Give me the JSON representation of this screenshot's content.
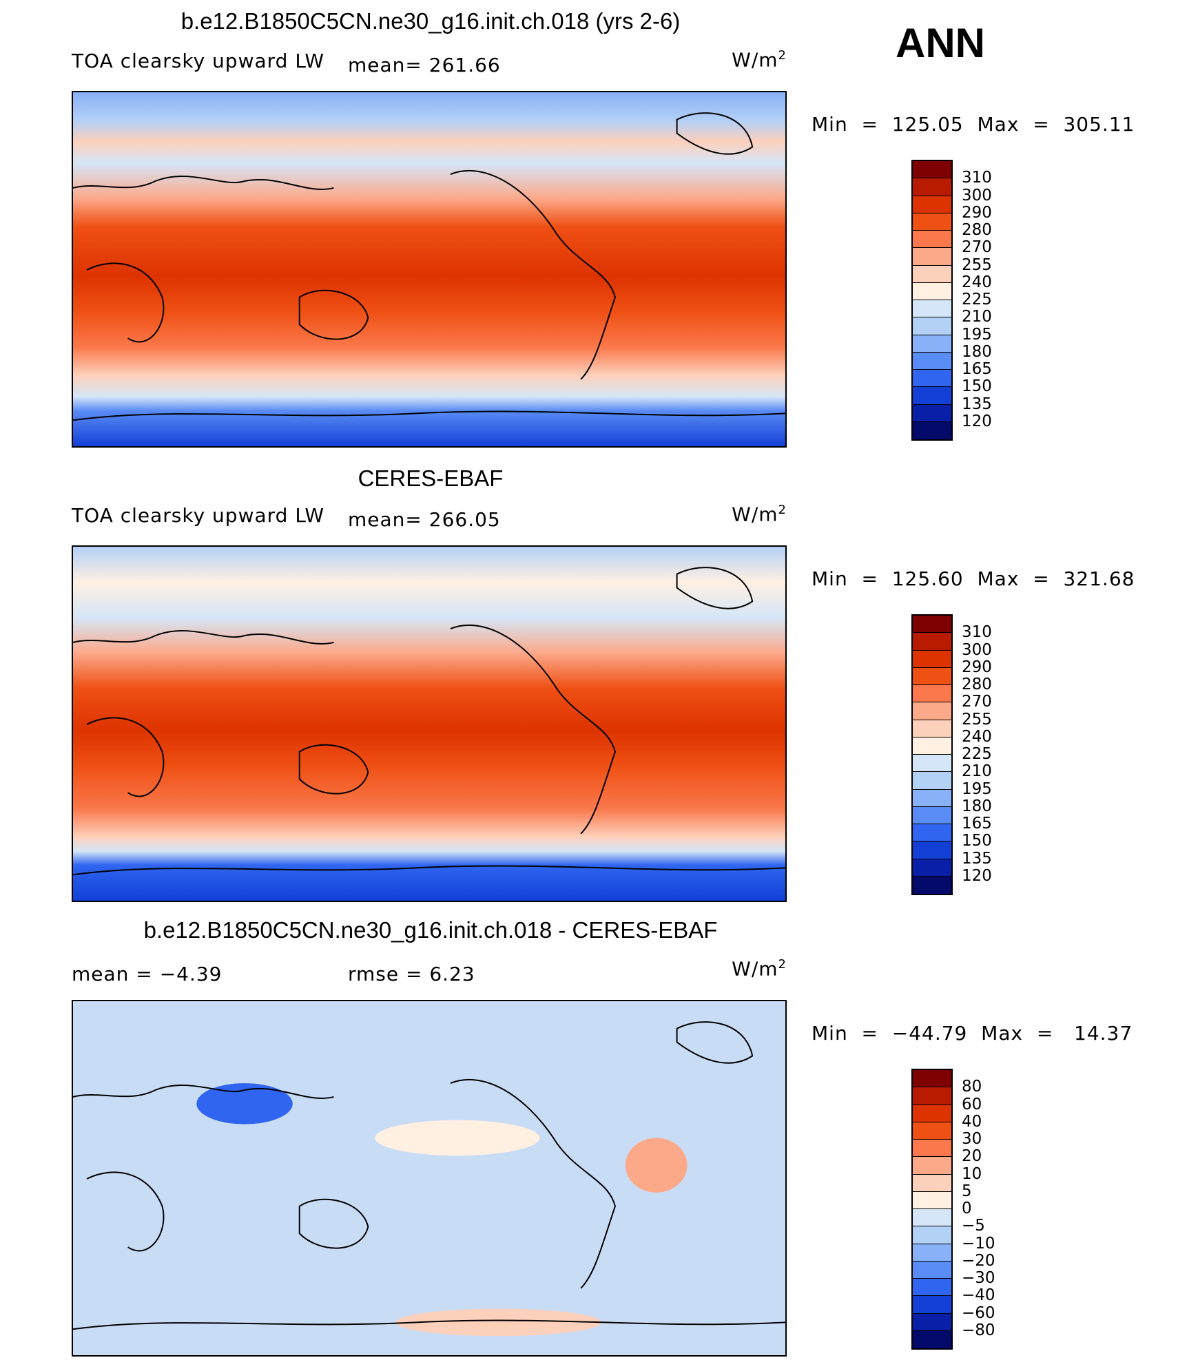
{
  "season": "ANN",
  "panels": [
    {
      "title": "b.e12.B1850C5CN.ne30_g16.init.ch.018 (yrs 2-6)",
      "variable": "TOA clearsky upward LW",
      "mean_label": "mean= 261.66",
      "rmse_label": "",
      "units": "W/m",
      "units_exp": "2",
      "minmax": "Min  =  125.05  Max  =  305.11",
      "colorbar": {
        "levels": [
          "310",
          "300",
          "290",
          "280",
          "270",
          "255",
          "240",
          "225",
          "210",
          "195",
          "180",
          "165",
          "150",
          "135",
          "120"
        ],
        "colors": [
          "#7f0000",
          "#b81b00",
          "#dd3300",
          "#ef5014",
          "#fa784b",
          "#fca98a",
          "#fdd0bb",
          "#fff0e2",
          "#d5e6f8",
          "#b3d0f7",
          "#88b1f7",
          "#5a8cf5",
          "#2f65f0",
          "#1240d6",
          "#0a1fa8",
          "#040a6a"
        ]
      }
    },
    {
      "title": "CERES-EBAF",
      "variable": "TOA clearsky upward LW",
      "mean_label": "mean= 266.05",
      "rmse_label": "",
      "units": "W/m",
      "units_exp": "2",
      "minmax": "Min  =  125.60  Max  =  321.68",
      "colorbar": {
        "levels": [
          "310",
          "300",
          "290",
          "280",
          "270",
          "255",
          "240",
          "225",
          "210",
          "195",
          "180",
          "165",
          "150",
          "135",
          "120"
        ],
        "colors": [
          "#7f0000",
          "#b81b00",
          "#dd3300",
          "#ef5014",
          "#fa784b",
          "#fca98a",
          "#fdd0bb",
          "#fff0e2",
          "#d5e6f8",
          "#b3d0f7",
          "#88b1f7",
          "#5a8cf5",
          "#2f65f0",
          "#1240d6",
          "#0a1fa8",
          "#040a6a"
        ]
      }
    },
    {
      "title": "b.e12.B1850C5CN.ne30_g16.init.ch.018 - CERES-EBAF",
      "variable": "",
      "mean_label": "mean =   −4.39",
      "rmse_label": "rmse =    6.23",
      "units": "W/m",
      "units_exp": "2",
      "minmax": "Min  =  −44.79  Max  =   14.37",
      "colorbar": {
        "levels": [
          "80",
          "60",
          "40",
          "30",
          "20",
          "10",
          "5",
          "0",
          "−5",
          "−10",
          "−20",
          "−30",
          "−40",
          "−60",
          "−80"
        ],
        "colors": [
          "#7f0000",
          "#b81b00",
          "#dd3300",
          "#ef5014",
          "#fa784b",
          "#fca98a",
          "#fdd0bb",
          "#fff0e2",
          "#d5e6f8",
          "#b3d0f7",
          "#88b1f7",
          "#5a8cf5",
          "#2f65f0",
          "#1240d6",
          "#0a1fa8",
          "#040a6a"
        ]
      }
    }
  ],
  "map_style": {
    "abs_fill": "#e9643a",
    "diff_fill": "#c9dcf6",
    "coast_color": "#000000"
  }
}
